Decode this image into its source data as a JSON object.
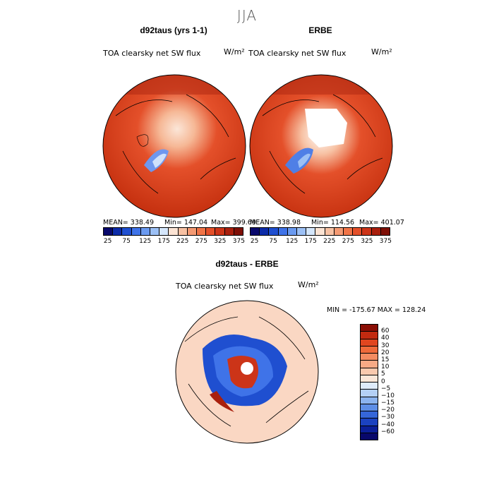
{
  "season": "JJA",
  "field_label": "TOA clearsky net SW flux",
  "units": "W/m²",
  "panels": {
    "left": {
      "title": "d92taus (yrs 1-1)",
      "mean": "MEAN= 338.49",
      "min": "Min= 147.04",
      "max": "Max= 399.69"
    },
    "right": {
      "title": "ERBE",
      "mean": "MEAN= 338.98",
      "min": "Min= 114.56",
      "max": "Max= 401.07"
    },
    "diff": {
      "title": "d92taus - ERBE",
      "minmax": "MIN = -175.67  MAX = 128.24"
    }
  },
  "colorbar_abs": {
    "ticks": [
      "25",
      "75",
      "125",
      "175",
      "225",
      "275",
      "325",
      "375"
    ],
    "colors": [
      "#08086b",
      "#0c2ba8",
      "#1f4fd0",
      "#3f73e8",
      "#6a9af0",
      "#9cc0f5",
      "#d4e6fb",
      "#fbe3d3",
      "#f7c1a3",
      "#f49a73",
      "#f07447",
      "#e4502a",
      "#cc3418",
      "#a91f0d",
      "#7e0f06"
    ]
  },
  "colorbar_diff": {
    "labels": [
      "60",
      "40",
      "30",
      "20",
      "15",
      "10",
      "5",
      "0",
      "−5",
      "−10",
      "−15",
      "−20",
      "−30",
      "−40",
      "−60"
    ],
    "colors": [
      "#8a0e05",
      "#c22a10",
      "#e0461f",
      "#ef6a3a",
      "#f48c61",
      "#f7aa86",
      "#f9c9ae",
      "#fbe6d8",
      "#deebfb",
      "#b4d0f6",
      "#8bb3ef",
      "#5e8ee6",
      "#3566d9",
      "#1b42c0",
      "#0b1f98",
      "#08086b"
    ]
  }
}
